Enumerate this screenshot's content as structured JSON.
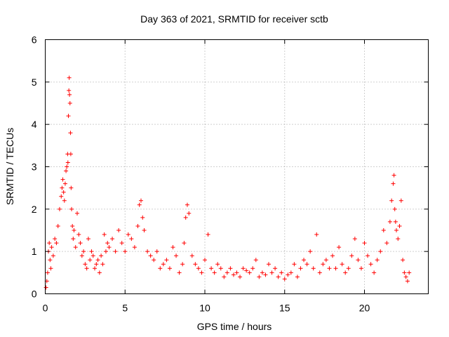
{
  "chart_data": {
    "type": "scatter",
    "title": "Day 363 of 2021, SRMTID for receiver sctb",
    "xlabel": "GPS time / hours",
    "ylabel": "SRMTID / TECUs",
    "xlim": [
      0,
      24
    ],
    "ylim": [
      0,
      6
    ],
    "xticks": [
      0,
      5,
      10,
      15,
      20
    ],
    "yticks": [
      0,
      1,
      2,
      3,
      4,
      5,
      6
    ],
    "grid": true,
    "marker": "+",
    "color": "#ff0000",
    "series": [
      {
        "name": "SRMTID",
        "x": [
          0.05,
          0.1,
          0.15,
          0.2,
          0.25,
          0.3,
          0.35,
          0.4,
          0.5,
          0.6,
          0.7,
          0.8,
          0.9,
          1.0,
          1.05,
          1.1,
          1.15,
          1.2,
          1.25,
          1.3,
          1.35,
          1.4,
          1.42,
          1.45,
          1.48,
          1.5,
          1.52,
          1.55,
          1.58,
          1.6,
          1.62,
          1.65,
          1.7,
          1.75,
          1.8,
          1.9,
          2.0,
          2.1,
          2.2,
          2.3,
          2.4,
          2.5,
          2.6,
          2.7,
          2.8,
          2.9,
          3.0,
          3.1,
          3.2,
          3.3,
          3.4,
          3.5,
          3.6,
          3.7,
          3.8,
          3.9,
          4.0,
          4.2,
          4.4,
          4.6,
          4.8,
          5.0,
          5.2,
          5.4,
          5.6,
          5.8,
          5.9,
          6.0,
          6.1,
          6.2,
          6.4,
          6.6,
          6.8,
          7.0,
          7.2,
          7.4,
          7.6,
          7.8,
          8.0,
          8.2,
          8.4,
          8.6,
          8.7,
          8.8,
          8.9,
          9.0,
          9.2,
          9.4,
          9.6,
          9.8,
          10.0,
          10.2,
          10.4,
          10.6,
          10.8,
          11.0,
          11.2,
          11.4,
          11.6,
          11.8,
          12.0,
          12.2,
          12.4,
          12.6,
          12.8,
          13.0,
          13.2,
          13.4,
          13.6,
          13.8,
          14.0,
          14.2,
          14.4,
          14.6,
          14.8,
          15.0,
          15.2,
          15.4,
          15.6,
          15.8,
          16.0,
          16.2,
          16.4,
          16.6,
          16.8,
          17.0,
          17.2,
          17.4,
          17.6,
          17.8,
          18.0,
          18.2,
          18.4,
          18.6,
          18.8,
          19.0,
          19.2,
          19.4,
          19.6,
          19.8,
          20.0,
          20.2,
          20.4,
          20.6,
          20.8,
          21.0,
          21.2,
          21.4,
          21.6,
          21.7,
          21.8,
          21.85,
          21.9,
          21.95,
          22.0,
          22.1,
          22.2,
          22.3,
          22.4,
          22.5,
          22.6,
          22.7,
          22.8
        ],
        "y": [
          0.15,
          0.3,
          0.5,
          1.0,
          1.2,
          0.8,
          0.6,
          1.1,
          0.9,
          1.3,
          1.2,
          1.6,
          2.0,
          2.3,
          2.5,
          2.7,
          2.4,
          2.2,
          2.6,
          2.9,
          3.0,
          3.3,
          3.1,
          4.2,
          4.8,
          5.1,
          4.7,
          4.5,
          3.8,
          3.3,
          2.5,
          2.0,
          1.6,
          1.3,
          1.5,
          1.1,
          1.9,
          1.4,
          1.2,
          0.9,
          1.0,
          0.7,
          0.6,
          1.3,
          0.8,
          1.0,
          0.9,
          0.6,
          0.7,
          0.8,
          0.5,
          0.9,
          0.7,
          1.4,
          1.0,
          1.2,
          1.1,
          1.3,
          1.0,
          1.5,
          1.2,
          1.0,
          1.4,
          1.3,
          1.1,
          1.6,
          2.1,
          2.2,
          1.8,
          1.5,
          1.0,
          0.9,
          0.8,
          1.0,
          0.6,
          0.7,
          0.8,
          0.6,
          1.1,
          0.9,
          0.5,
          0.7,
          1.2,
          1.8,
          2.1,
          1.9,
          0.9,
          0.7,
          0.6,
          0.5,
          0.8,
          1.4,
          0.6,
          0.5,
          0.7,
          0.6,
          0.4,
          0.5,
          0.6,
          0.45,
          0.5,
          0.4,
          0.6,
          0.55,
          0.5,
          0.6,
          0.8,
          0.4,
          0.5,
          0.45,
          0.7,
          0.5,
          0.6,
          0.4,
          0.5,
          0.35,
          0.45,
          0.5,
          0.7,
          0.4,
          0.6,
          0.8,
          0.7,
          1.0,
          0.6,
          1.4,
          0.5,
          0.7,
          0.8,
          0.6,
          0.9,
          0.6,
          1.1,
          0.7,
          0.5,
          0.6,
          0.9,
          1.3,
          0.8,
          0.6,
          1.2,
          0.9,
          0.7,
          0.5,
          0.8,
          1.0,
          1.5,
          1.2,
          1.7,
          2.2,
          2.6,
          2.8,
          2.0,
          1.7,
          1.5,
          1.3,
          1.6,
          2.2,
          0.8,
          0.5,
          0.4,
          0.3,
          0.5
        ]
      }
    ]
  }
}
